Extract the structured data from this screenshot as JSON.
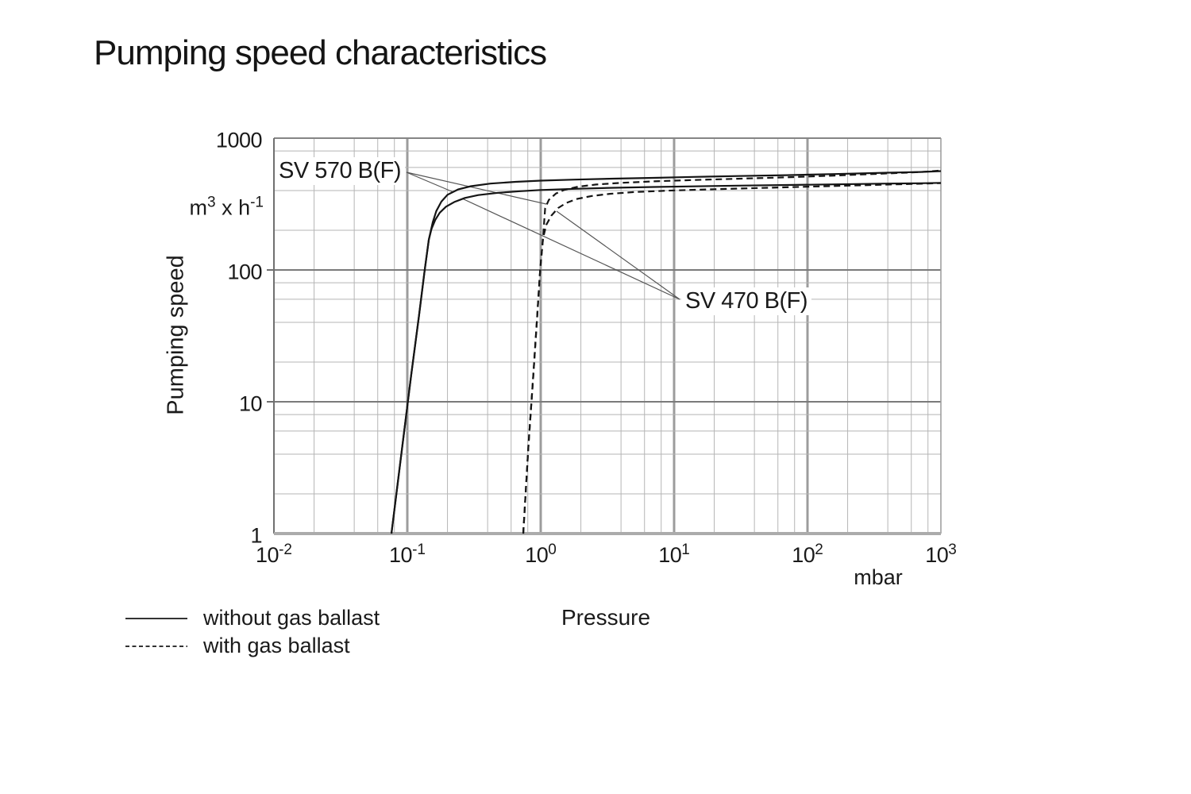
{
  "title": "Pumping speed characteristics",
  "y_axis": {
    "label": "Pumping speed",
    "unit": {
      "b1": "m",
      "s1": "3",
      "b2": " x h",
      "s2": "-1"
    },
    "ticks": [
      "1000",
      "100",
      "10",
      "1"
    ]
  },
  "x_axis": {
    "label": "Pressure",
    "unit": "mbar",
    "ticks": [
      {
        "base": "10",
        "exp": "-2"
      },
      {
        "base": "10",
        "exp": "-1"
      },
      {
        "base": "10",
        "exp": "0"
      },
      {
        "base": "10",
        "exp": "1"
      },
      {
        "base": "10",
        "exp": "2"
      },
      {
        "base": "10",
        "exp": "3"
      }
    ]
  },
  "legend": [
    {
      "style": "solid",
      "label": "without gas ballast"
    },
    {
      "style": "dashed",
      "label": "with gas ballast"
    }
  ],
  "annotations": [
    {
      "label": "SV 570 B(F)"
    },
    {
      "label": "SV 470 B(F)"
    }
  ],
  "colors": {
    "curve": "#151515",
    "minor_grid": "#b5b5b5",
    "major_grid_v": "#9c9c9c",
    "major_grid_h": "#7a7a7a",
    "frame": "#858585",
    "leader": "#555555",
    "text": "#1a1a1a"
  },
  "chart_data": {
    "type": "line",
    "title": "Pumping speed characteristics",
    "xlabel": "Pressure",
    "x_unit": "mbar",
    "ylabel": "Pumping speed",
    "y_unit": "m3 x h-1",
    "x_scale": "log",
    "y_scale": "log",
    "xlim": [
      0.01,
      1000
    ],
    "ylim": [
      1,
      1000
    ],
    "grid_minor_multiples": [
      2,
      4,
      6,
      8
    ],
    "legend_position": "bottom-left",
    "series": [
      {
        "name": "SV 570 B(F) without gas ballast",
        "pump": "SV 570 B(F)",
        "gas_ballast": false,
        "line_style": "solid",
        "points": [
          [
            0.076,
            1
          ],
          [
            0.092,
            4.7
          ],
          [
            0.107,
            16
          ],
          [
            0.122,
            44
          ],
          [
            0.135,
            100
          ],
          [
            0.145,
            170
          ],
          [
            0.155,
            230
          ],
          [
            0.165,
            280
          ],
          [
            0.18,
            330
          ],
          [
            0.2,
            372
          ],
          [
            0.24,
            408
          ],
          [
            0.3,
            432
          ],
          [
            0.42,
            452
          ],
          [
            0.65,
            466
          ],
          [
            1,
            476
          ],
          [
            1.8,
            485
          ],
          [
            3.5,
            493
          ],
          [
            7,
            500
          ],
          [
            14,
            508
          ],
          [
            30,
            516
          ],
          [
            70,
            524
          ],
          [
            160,
            534
          ],
          [
            400,
            547
          ],
          [
            700,
            554
          ],
          [
            1000,
            562
          ]
        ]
      },
      {
        "name": "SV 570 B(F) with gas ballast",
        "pump": "SV 570 B(F)",
        "gas_ballast": true,
        "line_style": "dashed",
        "points": [
          [
            0.74,
            1
          ],
          [
            0.81,
            4.7
          ],
          [
            0.88,
            16
          ],
          [
            0.94,
            44
          ],
          [
            0.99,
            100
          ],
          [
            1.04,
            174
          ],
          [
            1.06,
            230
          ],
          [
            1.08,
            295
          ],
          [
            1.15,
            340
          ],
          [
            1.3,
            380
          ],
          [
            1.5,
            405
          ],
          [
            1.9,
            428
          ],
          [
            2.6,
            445
          ],
          [
            4,
            458
          ],
          [
            7,
            470
          ],
          [
            13,
            480
          ],
          [
            30,
            492
          ],
          [
            70,
            505
          ],
          [
            160,
            520
          ],
          [
            400,
            540
          ],
          [
            700,
            553
          ],
          [
            1000,
            568
          ]
        ]
      },
      {
        "name": "SV 470 B(F) without gas ballast",
        "pump": "SV 470 B(F)",
        "gas_ballast": false,
        "line_style": "solid",
        "points": [
          [
            0.076,
            1
          ],
          [
            0.092,
            4.7
          ],
          [
            0.107,
            16
          ],
          [
            0.122,
            44
          ],
          [
            0.135,
            100
          ],
          [
            0.145,
            170
          ],
          [
            0.152,
            205
          ],
          [
            0.162,
            240
          ],
          [
            0.175,
            272
          ],
          [
            0.195,
            302
          ],
          [
            0.225,
            328
          ],
          [
            0.27,
            352
          ],
          [
            0.34,
            370
          ],
          [
            0.48,
            385
          ],
          [
            0.7,
            396
          ],
          [
            1,
            404
          ],
          [
            1.8,
            413
          ],
          [
            3.5,
            420
          ],
          [
            7,
            426
          ],
          [
            14,
            431
          ],
          [
            30,
            436
          ],
          [
            70,
            441
          ],
          [
            160,
            446
          ],
          [
            400,
            452
          ],
          [
            700,
            455
          ],
          [
            1000,
            458
          ]
        ]
      },
      {
        "name": "SV 470 B(F) with gas ballast",
        "pump": "SV 470 B(F)",
        "gas_ballast": true,
        "line_style": "dashed",
        "points": [
          [
            0.74,
            1
          ],
          [
            0.81,
            4.7
          ],
          [
            0.88,
            16
          ],
          [
            0.94,
            44
          ],
          [
            0.99,
            100
          ],
          [
            1.04,
            174
          ],
          [
            1.1,
            220
          ],
          [
            1.2,
            258
          ],
          [
            1.35,
            295
          ],
          [
            1.55,
            322
          ],
          [
            1.85,
            345
          ],
          [
            2.4,
            364
          ],
          [
            3.3,
            378
          ],
          [
            5,
            390
          ],
          [
            9,
            400
          ],
          [
            20,
            410
          ],
          [
            50,
            420
          ],
          [
            120,
            430
          ],
          [
            300,
            441
          ],
          [
            600,
            449
          ],
          [
            1000,
            456
          ]
        ]
      }
    ]
  }
}
